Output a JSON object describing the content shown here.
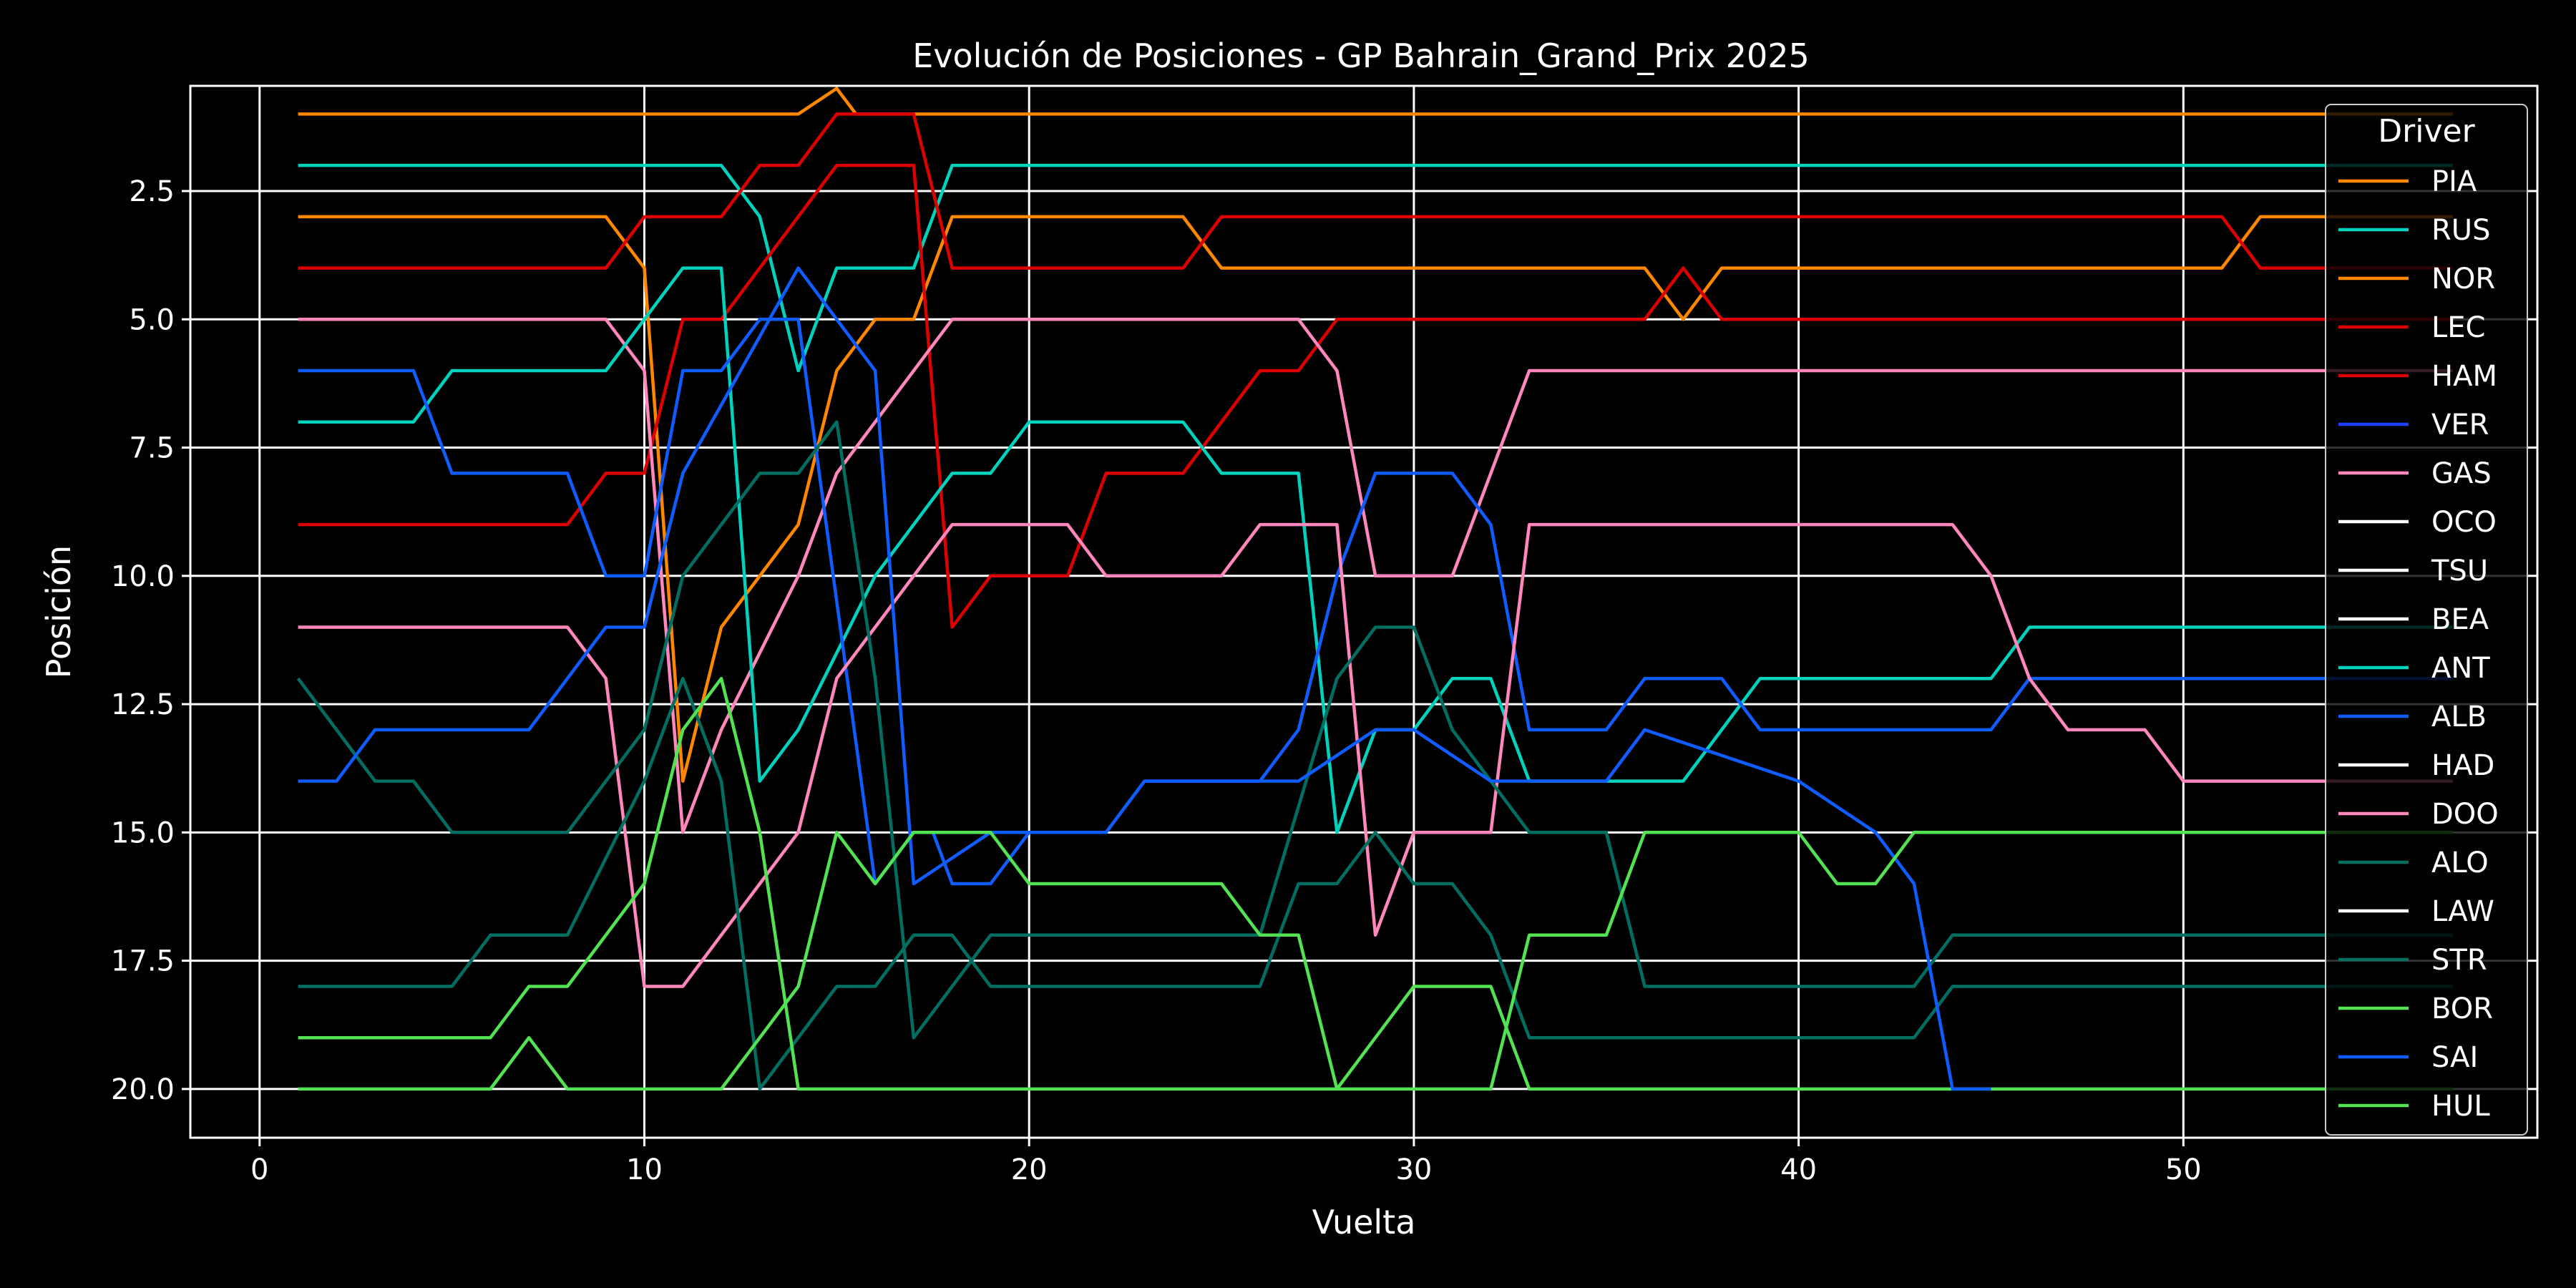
{
  "chart_data": {
    "type": "line",
    "title": "Evolución de Posiciones - GP Bahrain_Grand_Prix 2025",
    "xlabel": "Vuelta",
    "ylabel": "Posición",
    "xlim": [
      -1.8,
      59.2
    ],
    "ylim": [
      20.95,
      0.45
    ],
    "y_inverted": true,
    "xticks": [
      0,
      10,
      20,
      30,
      40,
      50
    ],
    "yticks": [
      2.5,
      5.0,
      7.5,
      10.0,
      12.5,
      15.0,
      17.5,
      20.0
    ],
    "ytick_labels": [
      "2.5",
      "5.0",
      "7.5",
      "10.0",
      "12.5",
      "15.0",
      "17.5",
      "20.0"
    ],
    "grid": true,
    "legend_title": "Driver",
    "legend_position": "top-right",
    "series": [
      {
        "name": "PIA",
        "color": "#ff8700",
        "points": [
          [
            1,
            1
          ],
          [
            14,
            1
          ],
          [
            15,
            0.5
          ],
          [
            15.5,
            1
          ],
          [
            17,
            1
          ],
          [
            18,
            1
          ],
          [
            57,
            1
          ]
        ]
      },
      {
        "name": "RUS",
        "color": "#00d2be",
        "points": [
          [
            1,
            2
          ],
          [
            12,
            2
          ],
          [
            13,
            3
          ],
          [
            14,
            6
          ],
          [
            15,
            4
          ],
          [
            17,
            4
          ],
          [
            18,
            2
          ],
          [
            57,
            2
          ]
        ]
      },
      {
        "name": "NOR",
        "color": "#ff8700",
        "points": [
          [
            1,
            3
          ],
          [
            9,
            3
          ],
          [
            10,
            4
          ],
          [
            11,
            14
          ],
          [
            12,
            11
          ],
          [
            14,
            9
          ],
          [
            15,
            6
          ],
          [
            16,
            5
          ],
          [
            17,
            5
          ],
          [
            18,
            3
          ],
          [
            24,
            3
          ],
          [
            25,
            4
          ],
          [
            36,
            4
          ],
          [
            37,
            5
          ],
          [
            38,
            4
          ],
          [
            51,
            4
          ],
          [
            52,
            3
          ],
          [
            57,
            3
          ]
        ]
      },
      {
        "name": "LEC",
        "color": "#dc0000",
        "points": [
          [
            1,
            4
          ],
          [
            9,
            4
          ],
          [
            10,
            3
          ],
          [
            12,
            3
          ],
          [
            13,
            2
          ],
          [
            14,
            2
          ],
          [
            15,
            1
          ],
          [
            17,
            1
          ],
          [
            18,
            4
          ],
          [
            24,
            4
          ],
          [
            25,
            3
          ],
          [
            51,
            3
          ],
          [
            52,
            4
          ],
          [
            57,
            4
          ]
        ]
      },
      {
        "name": "HAM",
        "color": "#dc0000",
        "points": [
          [
            1,
            9
          ],
          [
            8,
            9
          ],
          [
            9,
            8
          ],
          [
            10,
            8
          ],
          [
            11,
            5
          ],
          [
            12,
            5
          ],
          [
            15,
            2
          ],
          [
            17,
            2
          ],
          [
            18,
            11
          ],
          [
            19,
            10
          ],
          [
            21,
            10
          ],
          [
            22,
            8
          ],
          [
            24,
            8
          ],
          [
            26,
            6
          ],
          [
            27,
            6
          ],
          [
            28,
            5
          ],
          [
            36,
            5
          ],
          [
            37,
            4
          ],
          [
            38,
            5
          ],
          [
            57,
            5
          ]
        ]
      },
      {
        "name": "VER",
        "color": "#1e41ff",
        "points": []
      },
      {
        "name": "GAS",
        "color": "#ff87bc",
        "points": [
          [
            1,
            5
          ],
          [
            9,
            5
          ],
          [
            10,
            6
          ],
          [
            11,
            15
          ],
          [
            12,
            13
          ],
          [
            14,
            10
          ],
          [
            15,
            8
          ],
          [
            18,
            5
          ],
          [
            27,
            5
          ],
          [
            28,
            6
          ],
          [
            29,
            10
          ],
          [
            31,
            10
          ],
          [
            33,
            6
          ],
          [
            57,
            6
          ]
        ]
      },
      {
        "name": "OCO",
        "color": "#ffffff",
        "points": []
      },
      {
        "name": "TSU",
        "color": "#ffffff",
        "points": []
      },
      {
        "name": "BEA",
        "color": "#ffffff",
        "points": []
      },
      {
        "name": "ANT",
        "color": "#00d2be",
        "points": [
          [
            1,
            7
          ],
          [
            4,
            7
          ],
          [
            5,
            6
          ],
          [
            9,
            6
          ],
          [
            11,
            4
          ],
          [
            12,
            4
          ],
          [
            13,
            14
          ],
          [
            14,
            13
          ],
          [
            16,
            10
          ],
          [
            18,
            8
          ],
          [
            19,
            8
          ],
          [
            20,
            7
          ],
          [
            24,
            7
          ],
          [
            25,
            8
          ],
          [
            27,
            8
          ],
          [
            28,
            15
          ],
          [
            29,
            13
          ],
          [
            30,
            13
          ],
          [
            31,
            12
          ],
          [
            32,
            12
          ],
          [
            33,
            14
          ],
          [
            37,
            14
          ],
          [
            39,
            12
          ],
          [
            45,
            12
          ],
          [
            46,
            11
          ],
          [
            57,
            11
          ]
        ]
      },
      {
        "name": "ALB",
        "color": "#0f5dff",
        "points": [
          [
            1,
            6
          ],
          [
            4,
            6
          ],
          [
            5,
            8
          ],
          [
            8,
            8
          ],
          [
            9,
            10
          ],
          [
            10,
            10
          ],
          [
            11,
            6
          ],
          [
            12,
            6
          ],
          [
            13,
            5
          ],
          [
            14,
            5
          ],
          [
            16,
            16
          ],
          [
            17,
            15
          ],
          [
            17.5,
            15
          ],
          [
            18,
            16
          ],
          [
            19,
            16
          ],
          [
            20,
            15
          ],
          [
            22,
            15
          ],
          [
            23,
            14
          ],
          [
            26,
            14
          ],
          [
            27,
            13
          ],
          [
            28,
            10
          ],
          [
            29,
            8
          ],
          [
            31,
            8
          ],
          [
            32,
            9
          ],
          [
            33,
            13
          ],
          [
            35,
            13
          ],
          [
            36,
            12
          ],
          [
            38,
            12
          ],
          [
            39,
            13
          ],
          [
            43,
            13
          ],
          [
            45,
            13
          ],
          [
            46,
            12
          ],
          [
            57,
            12
          ]
        ]
      },
      {
        "name": "HAD",
        "color": "#ffffff",
        "points": []
      },
      {
        "name": "DOO",
        "color": "#ff87bc",
        "points": [
          [
            1,
            11
          ],
          [
            8,
            11
          ],
          [
            9,
            12
          ],
          [
            10,
            18
          ],
          [
            11,
            18
          ],
          [
            13,
            16
          ],
          [
            14,
            15
          ],
          [
            15,
            12
          ],
          [
            16,
            11
          ],
          [
            18,
            9
          ],
          [
            21,
            9
          ],
          [
            22,
            10
          ],
          [
            25,
            10
          ],
          [
            26,
            9
          ],
          [
            28,
            9
          ],
          [
            29,
            17
          ],
          [
            30,
            15
          ],
          [
            32,
            15
          ],
          [
            33,
            9
          ],
          [
            44,
            9
          ],
          [
            45,
            10
          ],
          [
            46,
            12
          ],
          [
            47,
            13
          ],
          [
            49,
            13
          ],
          [
            50,
            14
          ],
          [
            57,
            14
          ]
        ]
      },
      {
        "name": "ALO",
        "color": "#006f62",
        "points": [
          [
            1,
            12
          ],
          [
            3,
            14
          ],
          [
            4,
            14
          ],
          [
            5,
            15
          ],
          [
            8,
            15
          ],
          [
            10,
            13
          ],
          [
            11,
            10
          ],
          [
            13,
            8
          ],
          [
            14,
            8
          ],
          [
            15,
            7
          ],
          [
            16,
            12
          ],
          [
            17,
            19
          ],
          [
            19,
            17
          ],
          [
            26,
            17
          ],
          [
            28,
            12
          ],
          [
            29,
            11
          ],
          [
            30,
            11
          ],
          [
            31,
            13
          ],
          [
            33,
            15
          ],
          [
            35,
            15
          ],
          [
            36,
            18
          ],
          [
            43,
            18
          ],
          [
            44,
            17
          ],
          [
            57,
            17
          ]
        ]
      },
      {
        "name": "LAW",
        "color": "#ffffff",
        "points": []
      },
      {
        "name": "STR",
        "color": "#006f62",
        "points": [
          [
            1,
            18
          ],
          [
            5,
            18
          ],
          [
            6,
            17
          ],
          [
            8,
            17
          ],
          [
            10,
            14
          ],
          [
            11,
            12
          ],
          [
            12,
            14
          ],
          [
            13,
            20
          ],
          [
            15,
            18
          ],
          [
            16,
            18
          ],
          [
            17,
            17
          ],
          [
            18,
            17
          ],
          [
            19,
            18
          ],
          [
            26,
            18
          ],
          [
            27,
            16
          ],
          [
            28,
            16
          ],
          [
            29,
            15
          ],
          [
            30,
            16
          ],
          [
            31,
            16
          ],
          [
            32,
            17
          ],
          [
            33,
            19
          ],
          [
            43,
            19
          ],
          [
            44,
            18
          ],
          [
            57,
            18
          ]
        ]
      },
      {
        "name": "BOR",
        "color": "#52e252",
        "points": [
          [
            1,
            19
          ],
          [
            6,
            19
          ],
          [
            7,
            18
          ],
          [
            8,
            18
          ],
          [
            10,
            16
          ],
          [
            11,
            13
          ],
          [
            12,
            12
          ],
          [
            13,
            15
          ],
          [
            14,
            20
          ],
          [
            28,
            20
          ],
          [
            29,
            19
          ],
          [
            30,
            18
          ],
          [
            32,
            18
          ],
          [
            33,
            20
          ],
          [
            57,
            20
          ]
        ]
      },
      {
        "name": "SAI",
        "color": "#0f5dff",
        "points": [
          [
            1,
            14
          ],
          [
            2,
            14
          ],
          [
            3,
            13
          ],
          [
            7,
            13
          ],
          [
            9,
            11
          ],
          [
            10,
            11
          ],
          [
            11,
            8
          ],
          [
            14,
            4
          ],
          [
            15,
            5
          ],
          [
            16,
            6
          ],
          [
            17,
            16
          ],
          [
            19,
            15
          ],
          [
            22,
            15
          ],
          [
            23,
            14
          ],
          [
            27,
            14
          ],
          [
            29,
            13
          ],
          [
            30,
            13
          ],
          [
            32,
            14
          ],
          [
            35,
            14
          ],
          [
            36,
            13
          ],
          [
            40,
            14
          ],
          [
            42,
            15
          ],
          [
            43,
            16
          ],
          [
            44,
            20
          ],
          [
            45,
            20
          ]
        ]
      },
      {
        "name": "HUL",
        "color": "#52e252",
        "points": [
          [
            1,
            20
          ],
          [
            6,
            20
          ],
          [
            7,
            19
          ],
          [
            8,
            20
          ],
          [
            12,
            20
          ],
          [
            14,
            18
          ],
          [
            15,
            15
          ],
          [
            16,
            16
          ],
          [
            17,
            15
          ],
          [
            19,
            15
          ],
          [
            20,
            16
          ],
          [
            25,
            16
          ],
          [
            26,
            17
          ],
          [
            27,
            17
          ],
          [
            28,
            20
          ],
          [
            32,
            20
          ],
          [
            33,
            17
          ],
          [
            35,
            17
          ],
          [
            36,
            15
          ],
          [
            40,
            15
          ],
          [
            41,
            16
          ],
          [
            42,
            16
          ],
          [
            43,
            15
          ],
          [
            57,
            15
          ]
        ]
      }
    ]
  }
}
